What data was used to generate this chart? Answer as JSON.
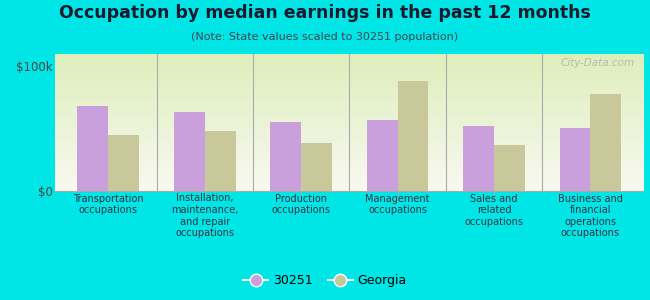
{
  "title": "Occupation by median earnings in the past 12 months",
  "subtitle": "(Note: State values scaled to 30251 population)",
  "categories": [
    "Transportation\noccupations",
    "Installation,\nmaintenance,\nand repair\noccupations",
    "Production\noccupations",
    "Management\noccupations",
    "Sales and\nrelated\noccupations",
    "Business and\nfinancial\noperations\noccupations"
  ],
  "values_30251": [
    68000,
    63000,
    55000,
    57000,
    52000,
    50000
  ],
  "values_georgia": [
    45000,
    48000,
    38000,
    88000,
    37000,
    78000
  ],
  "color_30251": "#c9a0dc",
  "color_georgia": "#c8c89a",
  "ylim": [
    0,
    110000
  ],
  "yticks": [
    0,
    100000
  ],
  "ytick_labels": [
    "$0",
    "$100k"
  ],
  "bg_top": "#ddeebb",
  "bg_bottom": "#f8f8f0",
  "outer_background": "#00e5e5",
  "legend_label_30251": "30251",
  "legend_label_georgia": "Georgia",
  "watermark": "City-Data.com",
  "bar_width": 0.32,
  "title_color": "#1a1a2e",
  "subtitle_color": "#444455",
  "label_color": "#333344",
  "divider_color": "#aaaaaa",
  "spine_color": "#aaaaaa"
}
